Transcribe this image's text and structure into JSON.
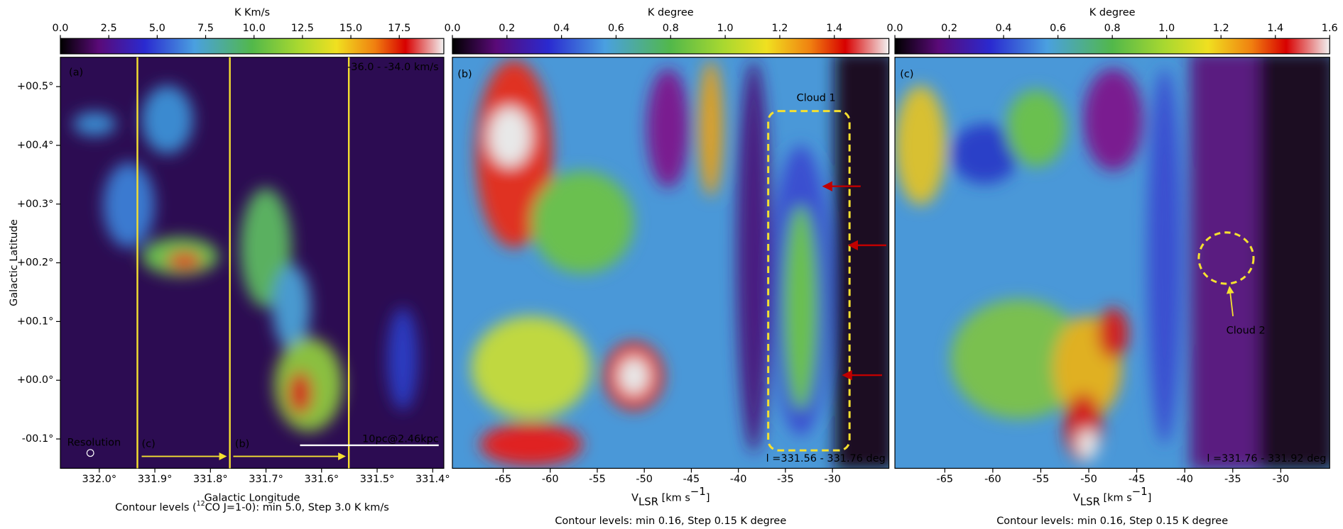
{
  "chart_data": [
    {
      "type": "heatmap",
      "colorbar_label": "K Km/s",
      "clim": [
        0,
        19.8
      ],
      "cticks": [
        {
          "value": 0,
          "label": "0.0"
        },
        2.5,
        {
          "value": 5,
          "label": "5.0"
        },
        7.5,
        {
          "value": 10,
          "label": "10.0"
        },
        12.5,
        {
          "value": 15,
          "label": "15.0"
        },
        17.5
      ],
      "xlim": [
        332.07,
        331.38
      ],
      "xticks": [
        {
          "value": 332.0,
          "label": "332.0°"
        },
        {
          "value": 331.9,
          "label": "331.9°"
        },
        {
          "value": 331.8,
          "label": "331.8°"
        },
        {
          "value": 331.7,
          "label": "331.7°"
        },
        {
          "value": 331.6,
          "label": "331.6°"
        },
        {
          "value": 331.5,
          "label": "331.5°"
        },
        {
          "value": 331.4,
          "label": "331.4°"
        }
      ],
      "ylim": [
        -0.15,
        0.55
      ],
      "yticks": [
        {
          "value": 0.5,
          "label": "+00.5°"
        },
        {
          "value": 0.4,
          "label": "+00.4°"
        },
        {
          "value": 0.3,
          "label": "+00.3°"
        },
        {
          "value": 0.2,
          "label": "+00.2°"
        },
        {
          "value": 0.1,
          "label": "+00.1°"
        },
        {
          "value": 0.0,
          "label": "+00.0°"
        },
        {
          "value": -0.1,
          "label": "-00.1°"
        }
      ],
      "xlabel": [
        "Galactic Longitude"
      ],
      "ylabel": "Galactic Latitude",
      "annotations": [
        "(a)",
        "-36.0 - -34.0 km/s",
        "Resolution",
        "(c)",
        "(b)",
        "10pc@2.46kpc"
      ],
      "note": [
        "Contour levels (",
        "12",
        "CO J=1-0): min 5.0, Step 3.0 K km/s"
      ]
    },
    {
      "type": "heatmap",
      "colorbar_label": "K degree",
      "clim": [
        0,
        1.6
      ],
      "cticks": [
        {
          "value": 0,
          "label": "0.0"
        },
        0.2,
        0.4,
        0.6,
        0.8,
        {
          "value": 1,
          "label": "1.0"
        },
        1.2,
        1.4
      ],
      "xlim": [
        -70.4,
        -24
      ],
      "xticks": [
        -65,
        -60,
        -55,
        -50,
        -45,
        -40,
        -35,
        -30
      ],
      "ylim": [
        -0.15,
        0.55
      ],
      "xlabel": [
        "V",
        "LSR",
        " [km s",
        "−1",
        "]"
      ],
      "annotations": [
        "(b)",
        "Cloud 1",
        "l =331.56 - 331.76 deg"
      ],
      "note": [
        "Contour levels: min 0.16, Step 0.15 K degree"
      ]
    },
    {
      "type": "heatmap",
      "colorbar_label": "K degree",
      "clim": [
        0,
        1.6
      ],
      "cticks": [
        {
          "value": 0,
          "label": "0.0"
        },
        0.2,
        0.4,
        0.6,
        0.8,
        {
          "value": 1,
          "label": "1.0"
        },
        1.2,
        1.4,
        1.6
      ],
      "xlim": [
        -70.2,
        -24.9
      ],
      "xticks": [
        -65,
        -60,
        -55,
        -50,
        -45,
        -40,
        -35,
        -30
      ],
      "ylim": [
        -0.15,
        0.55
      ],
      "xlabel": [
        "V",
        "LSR",
        " [km s",
        "−1",
        "]"
      ],
      "annotations": [
        "(c)",
        "Cloud 2",
        "l =331.76 - 331.92 deg"
      ],
      "note": [
        "Contour levels: min 0.16, Step 0.15 K degree"
      ]
    }
  ]
}
